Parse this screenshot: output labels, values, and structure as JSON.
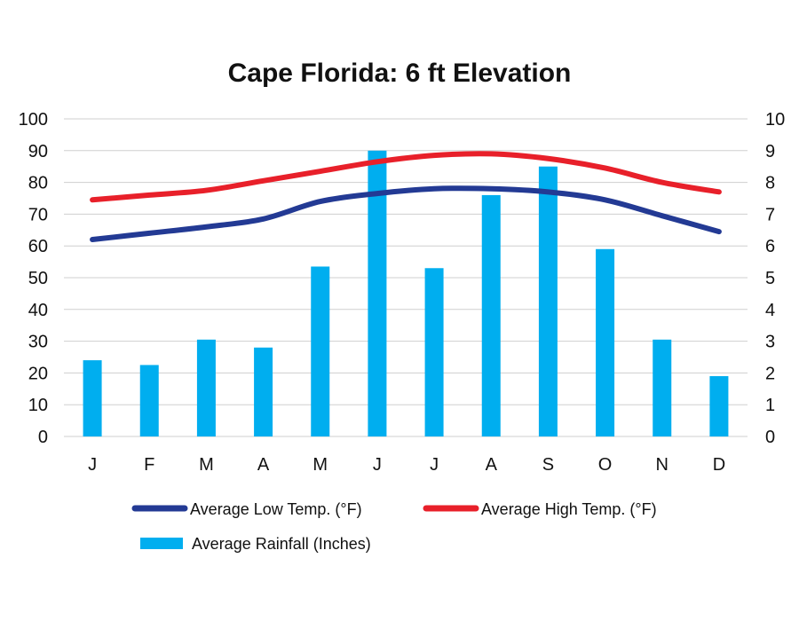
{
  "chart_data": {
    "type": "bar",
    "title": "Cape Florida: 6 ft Elevation",
    "categories": [
      "J",
      "F",
      "M",
      "A",
      "M",
      "J",
      "J",
      "A",
      "S",
      "O",
      "N",
      "D"
    ],
    "y_left_ticks": [
      "0",
      "10",
      "20",
      "30",
      "40",
      "50",
      "60",
      "70",
      "80",
      "90",
      "100"
    ],
    "y_right_ticks": [
      "0",
      "1",
      "2",
      "3",
      "4",
      "5",
      "6",
      "7",
      "8",
      "9",
      "10"
    ],
    "ylim_left": [
      0,
      100
    ],
    "ylim_right": [
      0,
      10
    ],
    "grid": true,
    "legend_position": "bottom",
    "series": [
      {
        "name": "Average Low Temp. (°F)",
        "kind": "line",
        "axis": "left",
        "color": "#233a94",
        "values": [
          62,
          64,
          66,
          68.5,
          74,
          76.5,
          78,
          78,
          77,
          74.5,
          69.5,
          64.5
        ]
      },
      {
        "name": "Average High Temp. (°F)",
        "kind": "line",
        "axis": "left",
        "color": "#e8202a",
        "values": [
          74.5,
          76,
          77.5,
          80.5,
          83.5,
          86.5,
          88.5,
          89,
          87.5,
          84.5,
          80,
          77
        ]
      },
      {
        "name": "Average Rainfall (Inches)",
        "kind": "bar",
        "axis": "right",
        "color": "#00aeef",
        "values": [
          2.4,
          2.25,
          3.05,
          2.8,
          5.35,
          9.0,
          5.3,
          7.6,
          8.5,
          5.9,
          3.05,
          1.9
        ]
      }
    ]
  }
}
